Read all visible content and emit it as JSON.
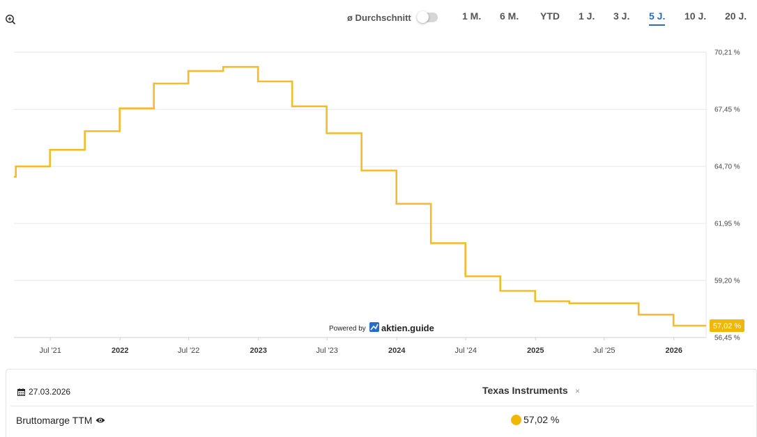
{
  "toolbar": {
    "zoom_icon": "zoom-in-icon",
    "average_label": "ø Durchschnitt",
    "ranges": [
      {
        "label": "1 M.",
        "active": false
      },
      {
        "label": "6 M.",
        "active": false
      },
      {
        "label": "YTD",
        "active": false
      },
      {
        "label": "1 J.",
        "active": false
      },
      {
        "label": "3 J.",
        "active": false
      },
      {
        "label": "5 J.",
        "active": true
      },
      {
        "label": "10 J.",
        "active": false
      },
      {
        "label": "20 J.",
        "active": false
      }
    ]
  },
  "colors": {
    "line": "#f2bc2d",
    "accent": "#2a6cc3",
    "badge": "#f2b705"
  },
  "chart_data": {
    "type": "line",
    "step": true,
    "title": "",
    "xlabel": "",
    "ylabel": "",
    "ylim": [
      56.45,
      70.21
    ],
    "xlim": [
      "2021-03-27",
      "2026-03-27"
    ],
    "grid": true,
    "y_ticks": [
      "70,21 %",
      "67,45 %",
      "64,70 %",
      "61,95 %",
      "59,20 %",
      "56,45 %"
    ],
    "y_tick_values": [
      70.21,
      67.45,
      64.7,
      61.95,
      59.2,
      56.45
    ],
    "x_ticks": [
      {
        "label": "Jul '21",
        "date": "2021-07-01",
        "bold": false
      },
      {
        "label": "2022",
        "date": "2022-01-01",
        "bold": true
      },
      {
        "label": "Jul '22",
        "date": "2022-07-01",
        "bold": false
      },
      {
        "label": "2023",
        "date": "2023-01-01",
        "bold": true
      },
      {
        "label": "Jul '23",
        "date": "2023-07-01",
        "bold": false
      },
      {
        "label": "2024",
        "date": "2024-01-01",
        "bold": true
      },
      {
        "label": "Jul '24",
        "date": "2024-07-01",
        "bold": false
      },
      {
        "label": "2025",
        "date": "2025-01-01",
        "bold": true
      },
      {
        "label": "Jul '25",
        "date": "2025-07-01",
        "bold": false
      },
      {
        "label": "2026",
        "date": "2026-01-01",
        "bold": true
      }
    ],
    "series": [
      {
        "name": "Texas Instruments",
        "points": [
          [
            "2021-03-27",
            64.2
          ],
          [
            "2021-04-01",
            64.7
          ],
          [
            "2021-06-30",
            65.5
          ],
          [
            "2021-09-30",
            66.4
          ],
          [
            "2021-12-31",
            67.5
          ],
          [
            "2022-03-31",
            68.7
          ],
          [
            "2022-06-30",
            69.3
          ],
          [
            "2022-09-30",
            69.5
          ],
          [
            "2022-12-31",
            68.8
          ],
          [
            "2023-03-31",
            67.6
          ],
          [
            "2023-06-30",
            66.3
          ],
          [
            "2023-09-30",
            64.5
          ],
          [
            "2023-12-31",
            62.9
          ],
          [
            "2024-03-31",
            61.0
          ],
          [
            "2024-06-30",
            59.4
          ],
          [
            "2024-09-30",
            58.7
          ],
          [
            "2024-12-31",
            58.2
          ],
          [
            "2025-03-31",
            58.1
          ],
          [
            "2025-06-30",
            58.1
          ],
          [
            "2025-09-30",
            57.55
          ],
          [
            "2025-12-31",
            57.02
          ],
          [
            "2026-03-27",
            57.02
          ]
        ]
      }
    ],
    "current_value_label": "57,02 %",
    "current_value": 57.02
  },
  "branding": {
    "powered_by": "Powered by",
    "name": "aktien.guide"
  },
  "tooltip": {
    "date": "27.03.2026",
    "company": "Texas Instruments",
    "close_glyph": "×",
    "metric": "Bruttomarge TTM",
    "value": "57,02 %"
  }
}
